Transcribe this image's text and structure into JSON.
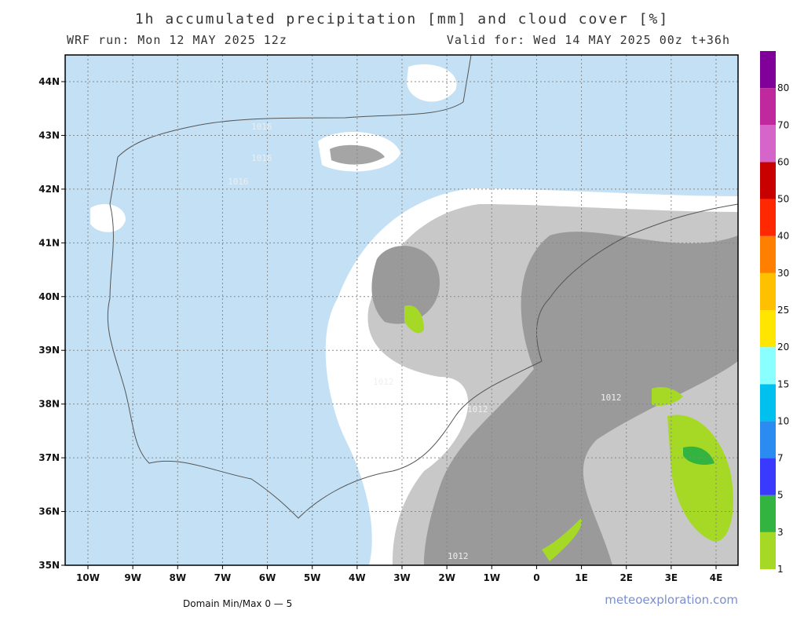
{
  "header": {
    "title": "1h accumulated precipitation [mm] and cloud cover [%]",
    "run": "WRF run: Mon 12 MAY 2025 12z",
    "valid": "Valid for: Wed 14 MAY 2025 00z  t+36h"
  },
  "map": {
    "lat_labels": [
      "44N",
      "43N",
      "42N",
      "41N",
      "40N",
      "39N",
      "38N",
      "37N",
      "36N",
      "35N"
    ],
    "lon_labels": [
      "10W",
      "9W",
      "8W",
      "7W",
      "6W",
      "5W",
      "4W",
      "3W",
      "2W",
      "1W",
      "0",
      "1E",
      "2E",
      "3E",
      "4E"
    ],
    "isobar_labels": [
      "1016",
      "1016",
      "1016",
      "1012",
      "1012",
      "1012",
      "1012"
    ]
  },
  "colorbar": {
    "labels": [
      1,
      3,
      5,
      7,
      10,
      15,
      20,
      25,
      30,
      40,
      50,
      60,
      70,
      80
    ],
    "colors": [
      "#a6d925",
      "#33b33f",
      "#3a3aff",
      "#2a8cf0",
      "#00c0f0",
      "#8affff",
      "#ffe600",
      "#ffc000",
      "#ff8000",
      "#ff2800",
      "#c80000",
      "#d565c8",
      "#c0289e",
      "#80009a"
    ]
  },
  "footer": {
    "minmax": "Domain Min/Max 0 — 5",
    "site": "meteoexploration.com"
  }
}
